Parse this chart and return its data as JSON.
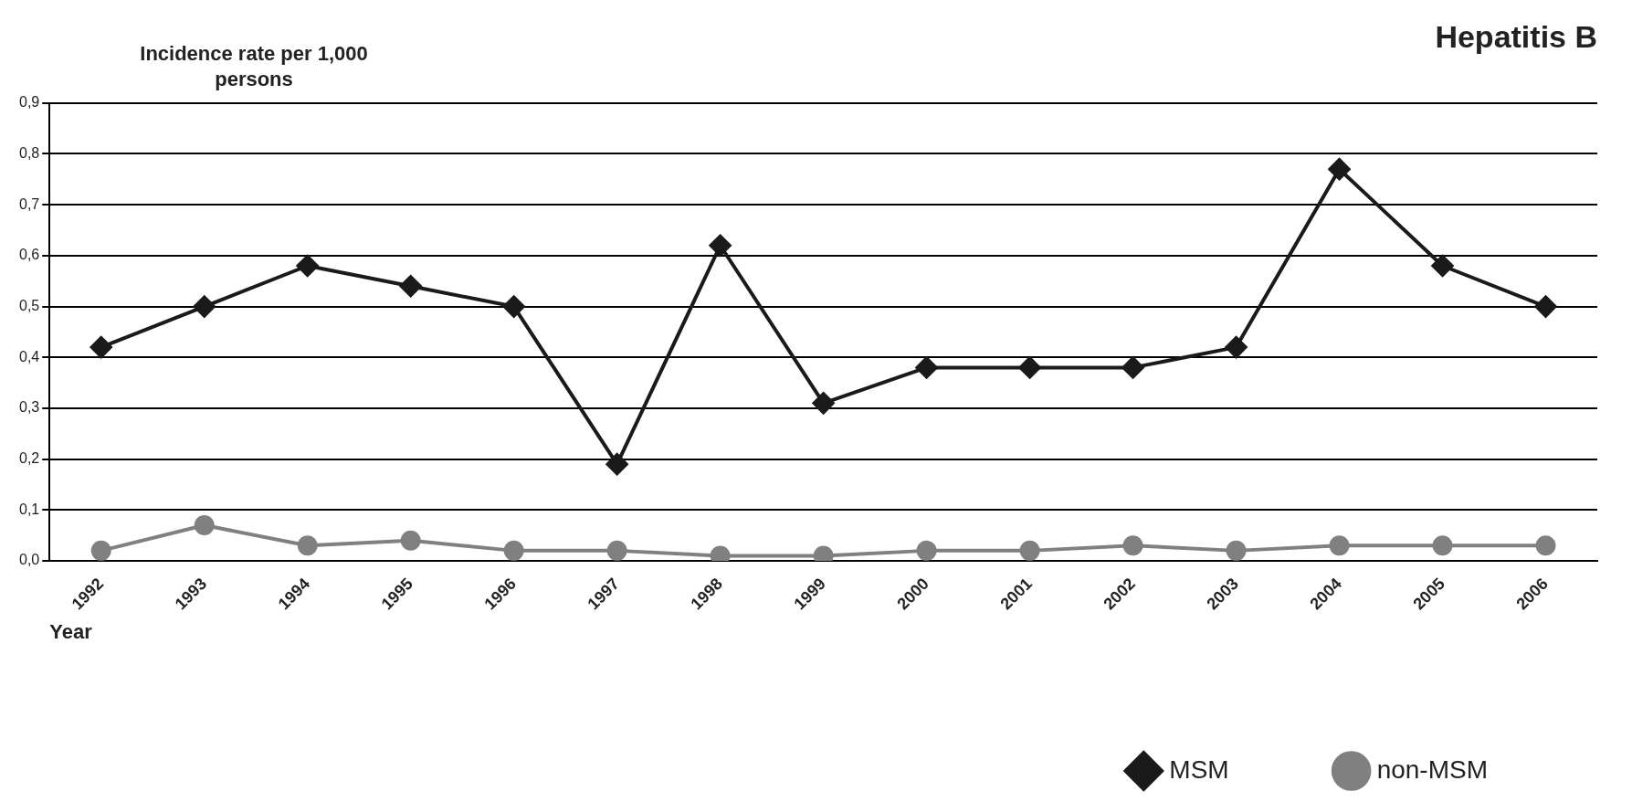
{
  "chart_data": {
    "type": "line",
    "title": "Hepatitis B",
    "ylabel": "Incidence rate per 1,000 persons",
    "xlabel": "Year",
    "categories": [
      "1992",
      "1993",
      "1994",
      "1995",
      "1996",
      "1997",
      "1998",
      "1999",
      "2000",
      "2001",
      "2002",
      "2003",
      "2004",
      "2005",
      "2006"
    ],
    "series": [
      {
        "name": "MSM",
        "color": "#1a1a1a",
        "marker": "diamond",
        "values": [
          0.42,
          0.5,
          0.58,
          0.54,
          0.5,
          0.19,
          0.62,
          0.31,
          0.38,
          0.38,
          0.38,
          0.42,
          0.77,
          0.58,
          0.5
        ]
      },
      {
        "name": "non-MSM",
        "color": "#808080",
        "marker": "circle",
        "values": [
          0.02,
          0.07,
          0.03,
          0.04,
          0.02,
          0.02,
          0.01,
          0.01,
          0.02,
          0.02,
          0.03,
          0.02,
          0.03,
          0.03,
          0.03
        ]
      }
    ],
    "ylim": [
      0,
      0.9
    ],
    "yticks": [
      {
        "value": 0,
        "label": "0,0"
      },
      {
        "value": 0.1,
        "label": "0,1"
      },
      {
        "value": 0.2,
        "label": "0,2"
      },
      {
        "value": 0.3,
        "label": "0,3"
      },
      {
        "value": 0.4,
        "label": "0,4"
      },
      {
        "value": 0.5,
        "label": "0,5"
      },
      {
        "value": 0.6,
        "label": "0,6"
      },
      {
        "value": 0.7,
        "label": "0,7"
      },
      {
        "value": 0.8,
        "label": "0,8"
      },
      {
        "value": 0.9,
        "label": "0,9"
      }
    ],
    "grid": "y",
    "legend": "bottom"
  }
}
